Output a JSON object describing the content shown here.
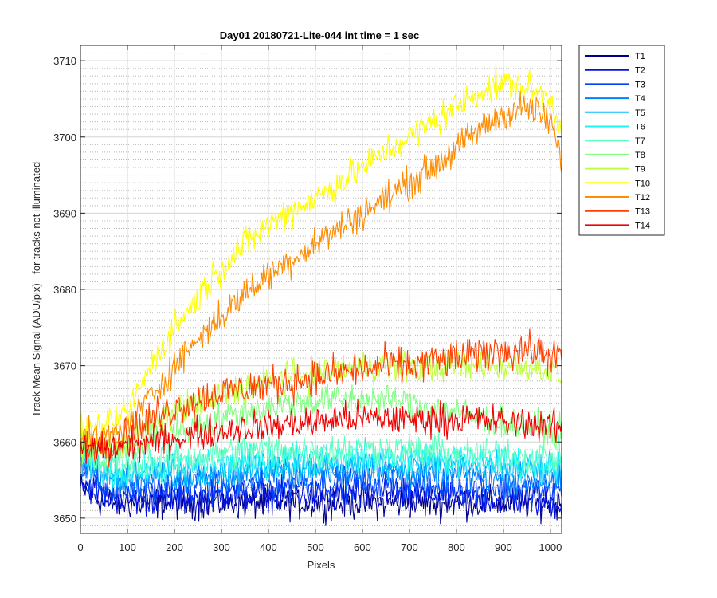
{
  "chart_data": {
    "type": "line",
    "title": "Day01 20180721-Lite-044 int time = 1 sec",
    "xlabel": "Pixels",
    "ylabel": "Track Mean Signal (ADU/pix) - for tracks not illuminated",
    "xlim": [
      0,
      1024
    ],
    "ylim": [
      3648,
      3712
    ],
    "xticks": [
      0,
      100,
      200,
      300,
      400,
      500,
      600,
      700,
      800,
      900,
      1000
    ],
    "yticks": [
      3650,
      3660,
      3670,
      3680,
      3690,
      3700,
      3710
    ],
    "grid": true,
    "minor_grid_y": true,
    "legend_position": "outside-top-right",
    "x": [
      0,
      50,
      100,
      150,
      200,
      250,
      300,
      350,
      400,
      450,
      500,
      550,
      600,
      650,
      700,
      750,
      800,
      850,
      900,
      950,
      1000,
      1024
    ],
    "noise_amplitude": [
      1.5,
      1.5,
      1.5,
      1.5,
      1.5,
      1.5,
      1.5,
      1.5,
      1.5,
      1.5,
      1.5,
      1.7,
      1.5
    ],
    "series": [
      {
        "name": "T1",
        "color": "#00008f",
        "values": [
          3654,
          3652,
          3652,
          3652,
          3652,
          3652,
          3652,
          3652,
          3652,
          3652,
          3652,
          3652,
          3652,
          3652,
          3652,
          3652,
          3652,
          3652,
          3652,
          3652,
          3652,
          3652
        ]
      },
      {
        "name": "T2",
        "color": "#0010e0",
        "values": [
          3655,
          3653,
          3652.5,
          3652.5,
          3652.5,
          3652.5,
          3653,
          3653,
          3653,
          3653,
          3653,
          3653,
          3653,
          3653,
          3653,
          3653,
          3652.5,
          3652.5,
          3652.5,
          3652.5,
          3652,
          3652
        ]
      },
      {
        "name": "T3",
        "color": "#0040ff",
        "values": [
          3656,
          3654,
          3653.5,
          3653.5,
          3654,
          3654,
          3654,
          3654,
          3654,
          3654.5,
          3654.5,
          3654.5,
          3654.5,
          3654.5,
          3654.5,
          3654,
          3654,
          3654,
          3654,
          3653.5,
          3653.5,
          3653.5
        ]
      },
      {
        "name": "T4",
        "color": "#0080ff",
        "values": [
          3657,
          3655.5,
          3655,
          3655,
          3655,
          3655.5,
          3655.5,
          3655.5,
          3656,
          3656,
          3656,
          3656,
          3656,
          3656,
          3656,
          3655.5,
          3655.5,
          3655.5,
          3655,
          3655,
          3655,
          3655
        ]
      },
      {
        "name": "T5",
        "color": "#00bfff",
        "values": [
          3657.5,
          3656,
          3655.5,
          3656,
          3656,
          3656,
          3656.5,
          3656.5,
          3657,
          3657,
          3657,
          3657,
          3657,
          3657,
          3657,
          3657,
          3657,
          3656.5,
          3656.5,
          3656.5,
          3656,
          3656
        ]
      },
      {
        "name": "T6",
        "color": "#1ff5f0",
        "values": [
          3658,
          3656.5,
          3656,
          3656.5,
          3656.5,
          3657,
          3657,
          3657.5,
          3657.5,
          3658,
          3658,
          3658,
          3658,
          3658,
          3658,
          3658,
          3657.5,
          3657.5,
          3657.5,
          3657,
          3657,
          3657
        ]
      },
      {
        "name": "T7",
        "color": "#60ffc0",
        "values": [
          3658,
          3657,
          3657,
          3657.5,
          3658,
          3658,
          3658.5,
          3659,
          3659,
          3659,
          3659,
          3659,
          3659,
          3659,
          3659,
          3659,
          3658.5,
          3658.5,
          3658.5,
          3658,
          3658,
          3658
        ]
      },
      {
        "name": "T8",
        "color": "#80ff80",
        "values": [
          3659,
          3658.5,
          3659,
          3660.5,
          3661.5,
          3662,
          3663,
          3664,
          3664.5,
          3665,
          3665.5,
          3665.5,
          3665.5,
          3665.5,
          3665,
          3664.5,
          3664,
          3663,
          3662.5,
          3662,
          3661.5,
          3661
        ]
      },
      {
        "name": "T9",
        "color": "#c0ff40",
        "values": [
          3660,
          3659.5,
          3660,
          3662,
          3664,
          3665,
          3666,
          3667,
          3668,
          3668.5,
          3669,
          3669.5,
          3670,
          3670,
          3670,
          3670,
          3670,
          3670,
          3670,
          3670,
          3669.5,
          3668.5
        ]
      },
      {
        "name": "T10",
        "color": "#ffff00",
        "values": [
          3661,
          3661.5,
          3664,
          3670,
          3675,
          3679,
          3683,
          3686,
          3688.5,
          3690.5,
          3692,
          3694,
          3696,
          3698,
          3700,
          3702,
          3704,
          3706,
          3707,
          3706.5,
          3705,
          3701
        ]
      },
      {
        "name": "T12",
        "color": "#ff8c00",
        "values": [
          3660.5,
          3660.5,
          3662,
          3666,
          3670,
          3673.5,
          3676.5,
          3679.5,
          3682,
          3684,
          3686,
          3688,
          3690,
          3692,
          3694,
          3696,
          3698.5,
          3701,
          3703,
          3704,
          3702,
          3697
        ]
      },
      {
        "name": "T13",
        "color": "#ff4000",
        "values": [
          3659.5,
          3659.5,
          3661,
          3663,
          3664.5,
          3665.5,
          3666.5,
          3667,
          3667.5,
          3668,
          3668.5,
          3669,
          3669.5,
          3670,
          3670,
          3670.5,
          3671,
          3671.5,
          3672,
          3672,
          3671.5,
          3671
        ]
      },
      {
        "name": "T14",
        "color": "#f00000",
        "values": [
          3659,
          3659,
          3659.5,
          3660,
          3660.5,
          3661,
          3661.5,
          3662,
          3662,
          3662.5,
          3662.5,
          3663,
          3663,
          3663,
          3663,
          3663,
          3663,
          3663,
          3662.5,
          3662.5,
          3662,
          3662
        ]
      }
    ]
  }
}
